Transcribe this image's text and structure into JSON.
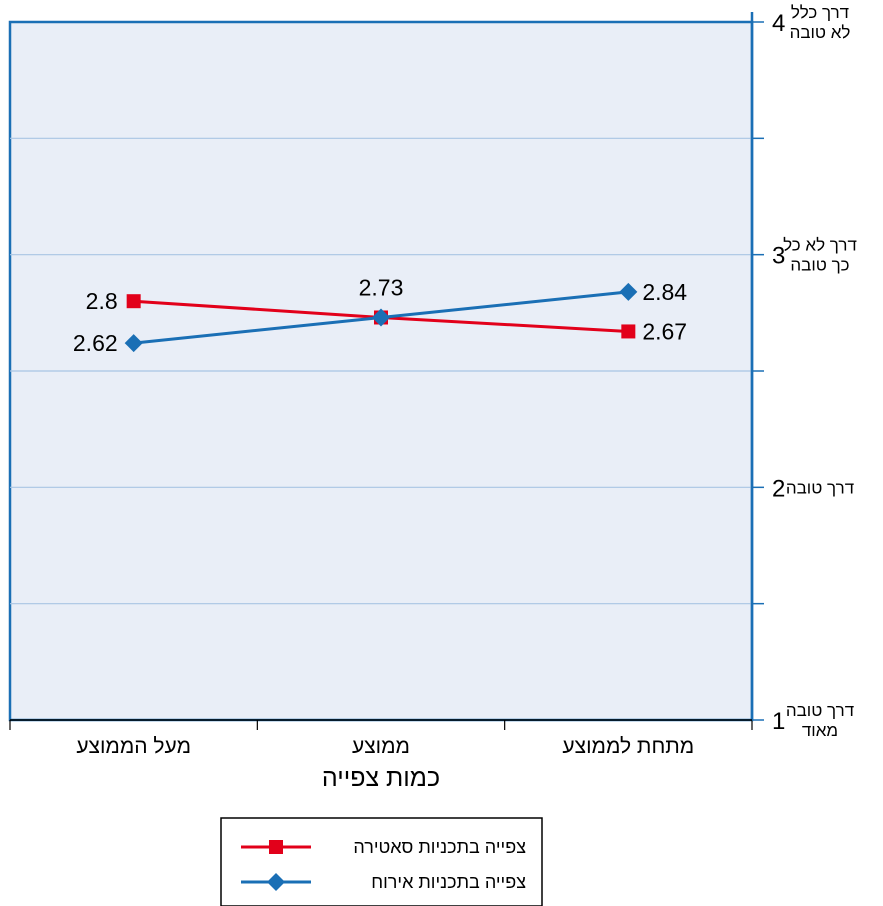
{
  "colors": {
    "plot_bg": "#e9eef7",
    "grid": "#a9c4e4",
    "axis": "#1a6fb5",
    "series_red": "#e2001a",
    "series_blue": "#1a6fb5"
  },
  "chart_data": {
    "type": "line",
    "title": "",
    "xlabel": "כמות צפייה",
    "ylabel": "",
    "categories": [
      "מעל הממוצע",
      "ממוצע",
      "מתחת לממוצע"
    ],
    "y_axis_side": "right",
    "ylim": [
      1,
      4
    ],
    "y_ticks": [
      {
        "value": 1,
        "label": "1",
        "word_lines": [
          "דרך טובה",
          "מאוד"
        ]
      },
      {
        "value": 2,
        "label": "2",
        "word_lines": [
          "דרך טובה"
        ]
      },
      {
        "value": 3,
        "label": "3",
        "word_lines": [
          "דרך לא כל",
          "כך טובה"
        ]
      },
      {
        "value": 4,
        "label": "4",
        "word_lines": [
          "דרך כלל",
          "לא טובה"
        ]
      }
    ],
    "grid": true,
    "legend_position": "bottom",
    "series": [
      {
        "name": "צפייה בתכניות סאטירה",
        "color": "#e2001a",
        "marker": "square",
        "values": [
          2.8,
          2.73,
          2.67
        ],
        "labels": [
          "2.8",
          "2.73",
          "2.67"
        ]
      },
      {
        "name": "צפייה בתכניות אירוח",
        "color": "#1a6fb5",
        "marker": "diamond",
        "values": [
          2.62,
          2.73,
          2.84
        ],
        "labels": [
          "2.62",
          "",
          "2.84"
        ]
      }
    ]
  }
}
